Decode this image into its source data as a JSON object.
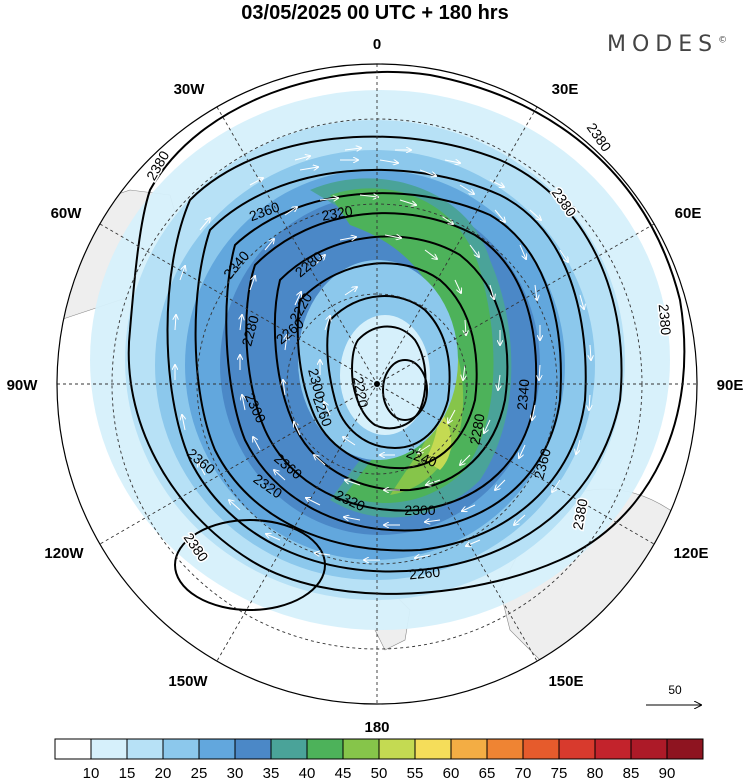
{
  "header": {
    "title": "03/05/2025  00 UTC  + 180 hrs",
    "brand": "MODES",
    "brand_mark": "©"
  },
  "map": {
    "projection": "south polar stereographic",
    "center_marker": true,
    "longitude_labels": [
      {
        "id": "0",
        "text": "0"
      },
      {
        "id": "30E",
        "text": "30E"
      },
      {
        "id": "60E",
        "text": "60E"
      },
      {
        "id": "90E",
        "text": "90E"
      },
      {
        "id": "120E",
        "text": "120E"
      },
      {
        "id": "150E",
        "text": "150E"
      },
      {
        "id": "180",
        "text": "180"
      },
      {
        "id": "150W",
        "text": "150W"
      },
      {
        "id": "120W",
        "text": "120W"
      },
      {
        "id": "90W",
        "text": "90W"
      },
      {
        "id": "60W",
        "text": "60W"
      },
      {
        "id": "30W",
        "text": "30W"
      }
    ],
    "contour_labels": [
      "2380",
      "2380",
      "2380",
      "2380",
      "2380",
      "2380",
      "2360",
      "2360",
      "2360",
      "2360",
      "2340",
      "2340",
      "2320",
      "2320",
      "2320",
      "2300",
      "2300",
      "2300",
      "2280",
      "2280",
      "2280",
      "2260",
      "2260",
      "2260",
      "2240",
      "2220",
      "2220"
    ],
    "colors": {
      "land": "#eeeeee",
      "grid": "#333333",
      "contour": "#000000",
      "vector": "#ffffff"
    }
  },
  "vector_reference": {
    "value": "50"
  },
  "colorbar": {
    "levels": [
      "10",
      "15",
      "20",
      "25",
      "30",
      "35",
      "40",
      "45",
      "50",
      "55",
      "60",
      "65",
      "70",
      "75",
      "80",
      "85",
      "90"
    ],
    "colors": [
      "#ffffff",
      "#d6f0fb",
      "#b7e1f6",
      "#8cc8ec",
      "#62a7dd",
      "#4b88c7",
      "#4aa399",
      "#4db25a",
      "#86c54a",
      "#c4da52",
      "#f5dd5a",
      "#f3ad44",
      "#ef8433",
      "#e65b2c",
      "#d83a2d",
      "#c3232c",
      "#ad1a28",
      "#8e1420"
    ]
  }
}
